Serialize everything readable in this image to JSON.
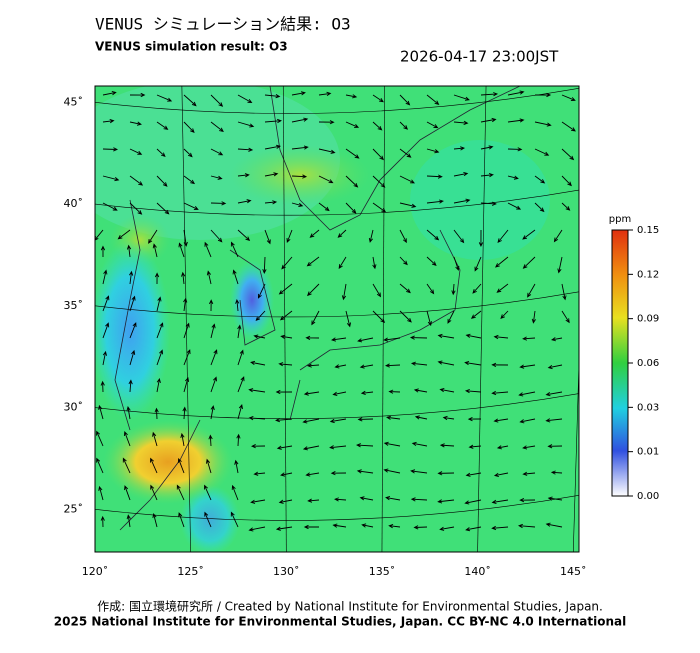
{
  "chart_data": {
    "type": "map",
    "title": "VENUS シミュレーション結果: O3",
    "subtitle": "VENUS simulation result: O3",
    "datetime": "2026-04-17 23:00JST",
    "xlim": [
      120,
      145.3
    ],
    "ylim": [
      22.9,
      45.8
    ],
    "xticks": [
      {
        "value": 120,
        "label": "120˚"
      },
      {
        "value": 125,
        "label": "125˚"
      },
      {
        "value": 130,
        "label": "130˚"
      },
      {
        "value": 135,
        "label": "135˚"
      },
      {
        "value": 140,
        "label": "140˚"
      },
      {
        "value": 145,
        "label": "145˚"
      }
    ],
    "yticks": [
      {
        "value": 25,
        "label": "25˚"
      },
      {
        "value": 30,
        "label": "30˚"
      },
      {
        "value": 35,
        "label": "35˚"
      },
      {
        "value": 40,
        "label": "40˚"
      },
      {
        "value": 45,
        "label": "45˚"
      }
    ],
    "colorbar": {
      "unit": "ppm",
      "ticks": [
        {
          "value": 0,
          "label": "0.00"
        },
        0.01,
        0.03,
        0.06,
        0.09,
        0.12,
        0.15
      ]
    },
    "credit": "作成: 国立環境研究所 / Created by National Institute for Environmental Studies, Japan.",
    "copyright": "2025 National Institute for Environmental Studies, Japan. CC BY-NC 4.0 International"
  }
}
